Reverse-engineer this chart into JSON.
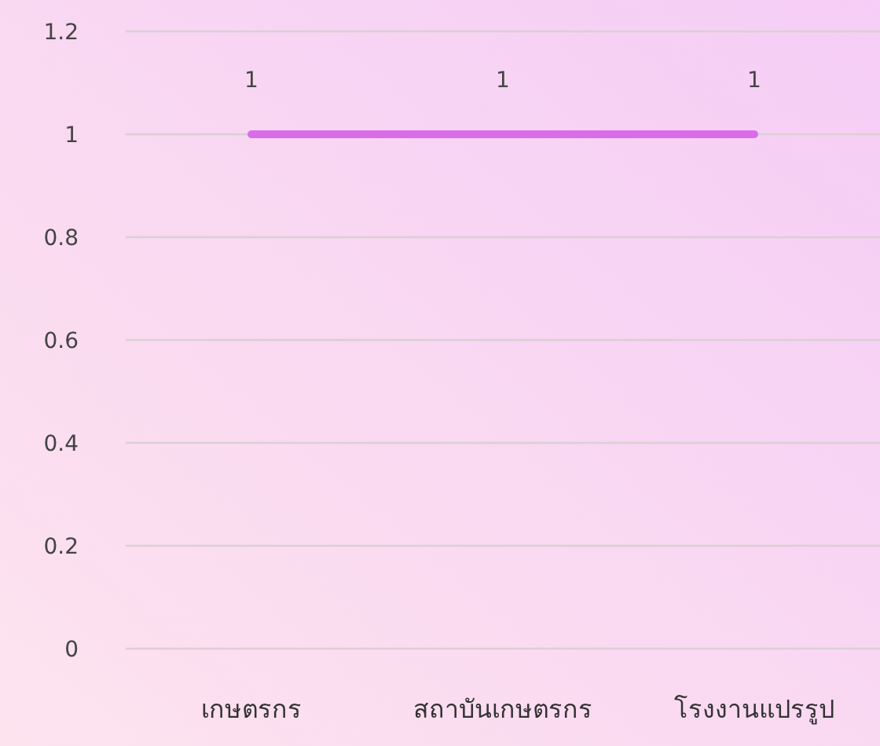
{
  "chart_data": {
    "type": "line",
    "categories": [
      "เกษตรกร",
      "สถาบันเกษตรกร",
      "โรงงานแปรรูป"
    ],
    "series": [
      {
        "color": "#d96de9",
        "values": [
          1,
          1,
          1
        ]
      }
    ],
    "ylim": [
      0,
      1.2
    ],
    "yticks": [
      0,
      0.2,
      0.4,
      0.6,
      0.8,
      1,
      1.2
    ],
    "grid": "y",
    "data_labels": true,
    "line_style": "solid"
  }
}
